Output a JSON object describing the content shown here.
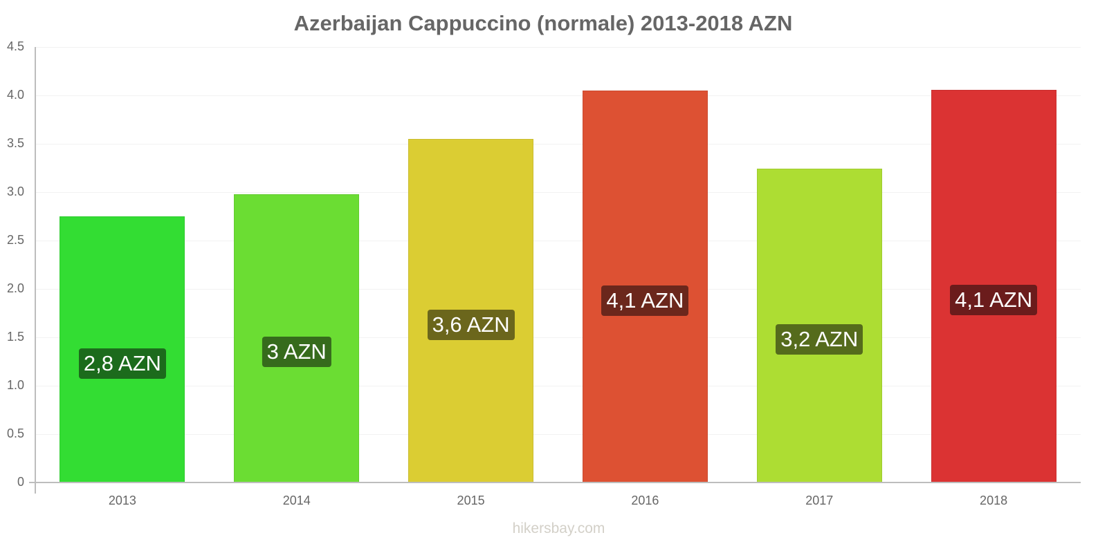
{
  "chart_data": {
    "type": "bar",
    "title": "Azerbaijan Cappuccino (normale) 2013-2018 AZN",
    "xlabel": "",
    "ylabel": "",
    "ylim": [
      0,
      4.5
    ],
    "yticks": [
      "0",
      "0.5",
      "1.0",
      "1.5",
      "2.0",
      "2.5",
      "3.0",
      "3.5",
      "4.0",
      "4.5"
    ],
    "categories": [
      "2013",
      "2014",
      "2015",
      "2016",
      "2017",
      "2018"
    ],
    "values": [
      2.75,
      2.98,
      3.55,
      4.05,
      3.24,
      4.06
    ],
    "data_labels": [
      "2,8 AZN",
      "3 AZN",
      "3,6 AZN",
      "4,1 AZN",
      "3,2 AZN",
      "4,1 AZN"
    ],
    "bar_colors": [
      "#33dd33",
      "#6bdd33",
      "#dbcd33",
      "#dd5133",
      "#addd33",
      "#db3333"
    ],
    "label_colors": [
      "#1c6b1c",
      "#366b1c",
      "#6b661c",
      "#6b271c",
      "#556b1c",
      "#6b1c1c"
    ],
    "grid": true,
    "legend": null
  },
  "watermark": "hikersbay.com"
}
